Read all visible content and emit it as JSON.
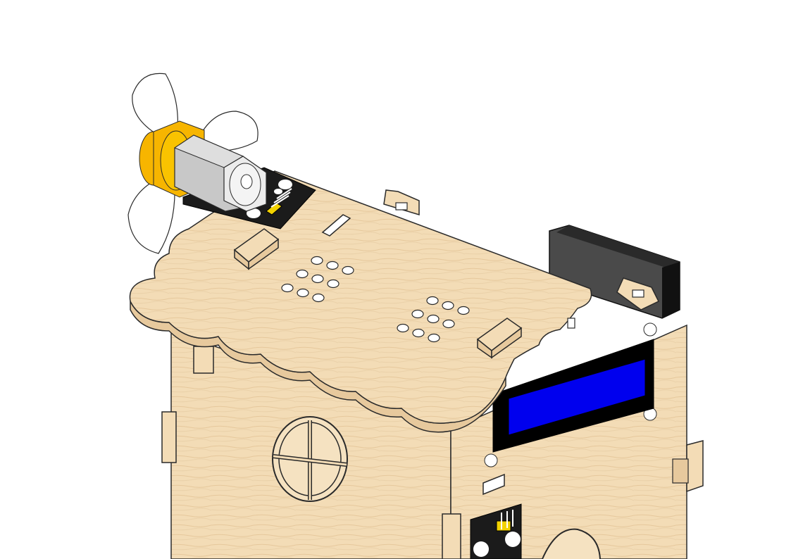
{
  "illustration": {
    "type": "isometric-assembly-drawing",
    "subject": "wooden-smart-house-kit",
    "colors": {
      "background": "#ffffff",
      "wood": "#f3dcb6",
      "wood_shade": "#e7c99d",
      "outline": "#2a2a2a",
      "pcb": "#1b1b1b",
      "lcd_screen": "#0000ee",
      "lcd_bezel": "#000000",
      "motor_body": "#c8c8c8",
      "motor_ring": "#f7b500",
      "propeller": "#ffffff",
      "connector": "#f2d200",
      "controller_board": "#3c3c3c"
    },
    "components": [
      "fan-module",
      "lcd-display",
      "sensor-module",
      "controller-board"
    ]
  }
}
